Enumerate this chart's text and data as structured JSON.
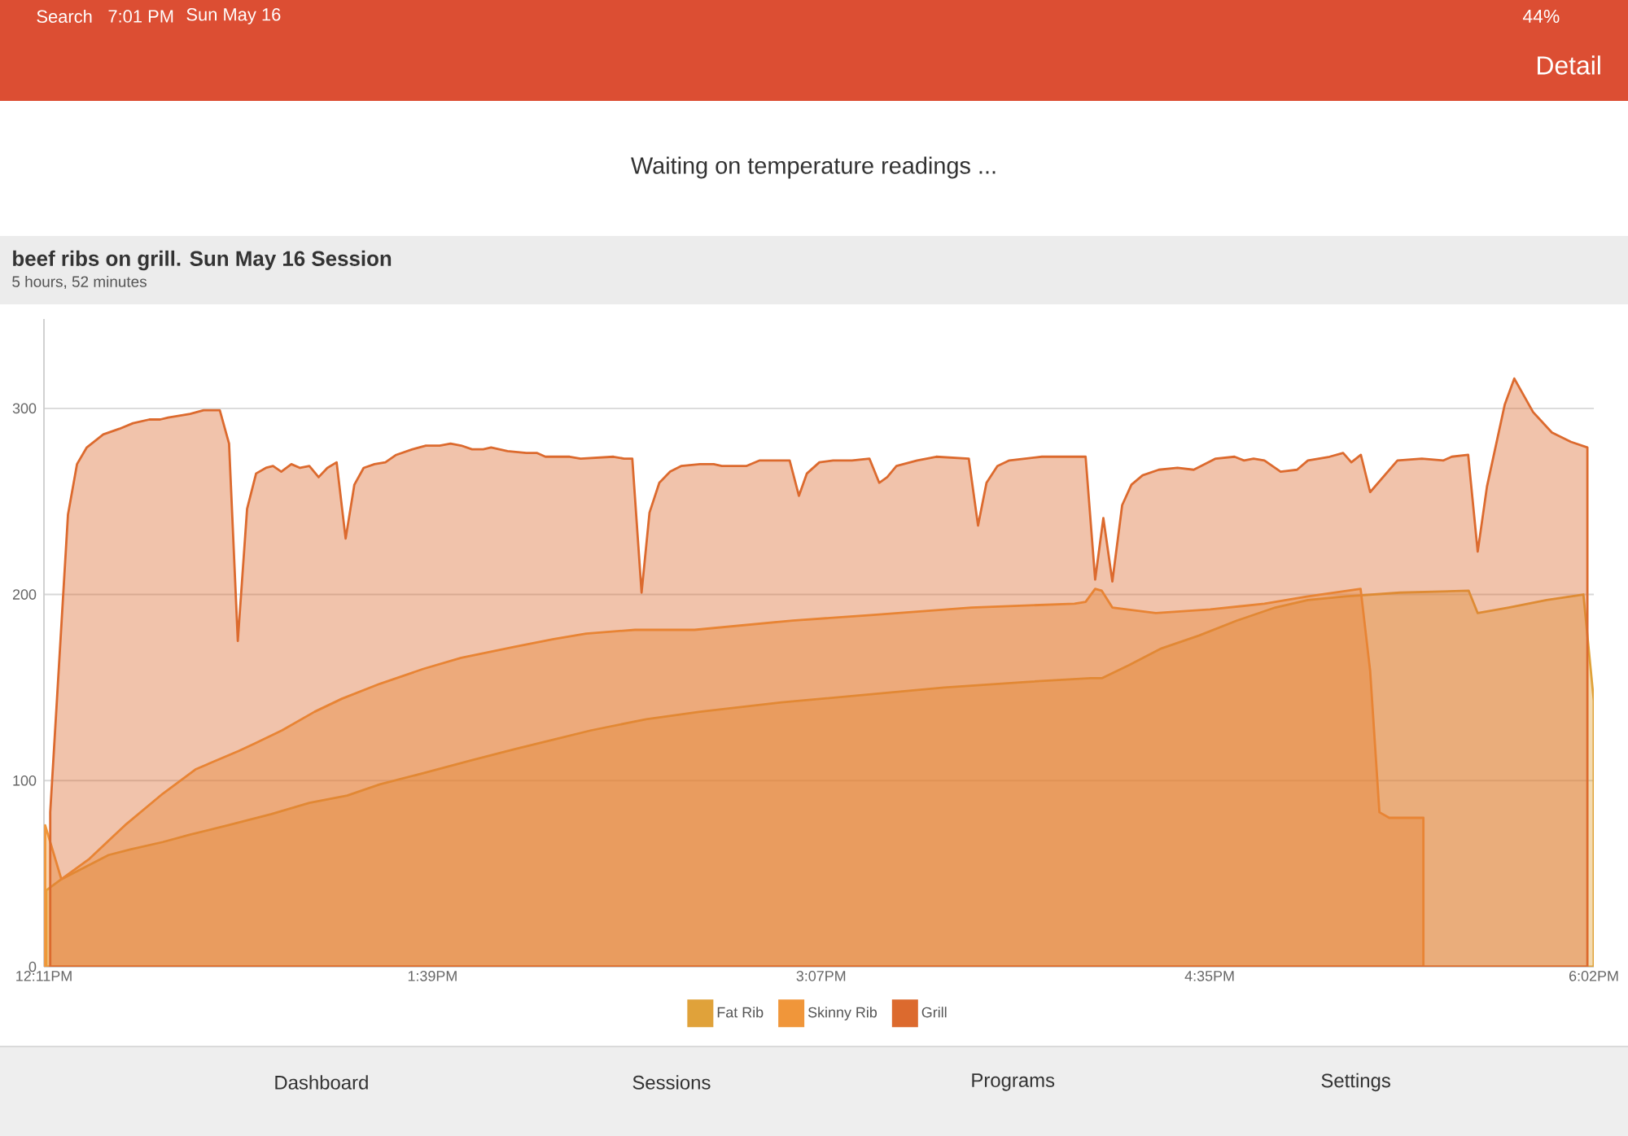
{
  "chart_data": {
    "type": "area",
    "title": "beef ribs on grill. Sun May 16 Session",
    "subtitle": "5 hours, 52 minutes",
    "annotations": [
      "Search",
      "7:01 PM",
      "Sun May 16",
      "44%",
      "Detail",
      "Waiting on temperature readings ...",
      "Dashboard",
      "Sessions",
      "Programs",
      "Settings"
    ],
    "xlim": [
      12.1833,
      18.0333
    ],
    "xticks": [
      {
        "value": 12.1833,
        "label": "12:11PM"
      },
      {
        "value": 13.65,
        "label": "1:39PM"
      },
      {
        "value": 15.1167,
        "label": "3:07PM"
      },
      {
        "value": 16.5833,
        "label": "4:35PM"
      },
      {
        "value": 18.0333,
        "label": "6:02PM"
      }
    ],
    "ylim": [
      0,
      348
    ],
    "yticks": [
      0,
      100,
      200,
      300
    ],
    "grid": "y",
    "legend": "bottom",
    "series": [
      {
        "name": "Fat Rib",
        "color": "#e0a23a",
        "x": [
          12.192,
          12.249,
          12.345,
          12.427,
          12.509,
          12.632,
          12.735,
          12.878,
          13.042,
          13.185,
          13.328,
          13.451,
          13.615,
          13.799,
          13.963,
          14.107,
          14.249,
          14.456,
          14.66,
          14.967,
          15.274,
          15.581,
          15.889,
          16.134,
          16.176,
          16.278,
          16.401,
          16.544,
          16.687,
          16.831,
          16.954,
          17.097,
          17.302,
          17.561,
          17.595,
          17.712,
          17.855,
          17.994,
          18.009,
          18.033
        ],
        "values": [
          41,
          47,
          54,
          60,
          63,
          67,
          71,
          76,
          82,
          88,
          92,
          98,
          104,
          111,
          117,
          122,
          127,
          133,
          137,
          142,
          146,
          150,
          153,
          155,
          155,
          162,
          171,
          178,
          186,
          193,
          197,
          199,
          201,
          202,
          190,
          193,
          197,
          200,
          178,
          143
        ]
      },
      {
        "name": "Skinny Rib",
        "color": "#f0963a",
        "x": [
          12.188,
          12.249,
          12.355,
          12.489,
          12.632,
          12.755,
          12.919,
          12.98,
          13.082,
          13.205,
          13.308,
          13.451,
          13.615,
          13.758,
          13.963,
          14.107,
          14.23,
          14.414,
          14.639,
          15.009,
          15.315,
          15.684,
          16.073,
          16.115,
          16.151,
          16.176,
          16.216,
          16.38,
          16.585,
          16.79,
          16.954,
          17.153,
          17.189,
          17.224,
          17.261,
          17.302,
          17.39
        ],
        "values": [
          76,
          47,
          58,
          76,
          93,
          106,
          116,
          120,
          127,
          137,
          144,
          152,
          160,
          166,
          172,
          176,
          179,
          181,
          181,
          186,
          189,
          193,
          195,
          196,
          203,
          202,
          193,
          190,
          192,
          195,
          199,
          203,
          159,
          83,
          80,
          80,
          80
        ]
      },
      {
        "name": "Grill",
        "color": "#dc6a2e",
        "x": [
          12.207,
          12.274,
          12.308,
          12.345,
          12.407,
          12.468,
          12.519,
          12.581,
          12.622,
          12.652,
          12.735,
          12.786,
          12.847,
          12.882,
          12.915,
          12.95,
          12.984,
          13.021,
          13.048,
          13.079,
          13.117,
          13.15,
          13.185,
          13.22,
          13.253,
          13.288,
          13.322,
          13.355,
          13.39,
          13.431,
          13.472,
          13.513,
          13.574,
          13.625,
          13.677,
          13.718,
          13.758,
          13.799,
          13.841,
          13.871,
          13.933,
          14.004,
          14.045,
          14.076,
          14.107,
          14.168,
          14.209,
          14.333,
          14.373,
          14.404,
          14.439,
          14.469,
          14.506,
          14.547,
          14.588,
          14.66,
          14.711,
          14.742,
          14.834,
          14.885,
          14.998,
          15.033,
          15.063,
          15.11,
          15.162,
          15.233,
          15.299,
          15.336,
          15.366,
          15.401,
          15.479,
          15.551,
          15.674,
          15.709,
          15.741,
          15.782,
          15.827,
          15.95,
          16.053,
          16.104,
          16.115,
          16.151,
          16.182,
          16.216,
          16.253,
          16.288,
          16.33,
          16.391,
          16.462,
          16.523,
          16.606,
          16.677,
          16.713,
          16.749,
          16.79,
          16.851,
          16.913,
          16.954,
          17.036,
          17.087,
          17.118,
          17.154,
          17.189,
          17.292,
          17.384,
          17.466,
          17.497,
          17.559,
          17.595,
          17.63,
          17.697,
          17.733,
          17.804,
          17.875,
          17.947,
          18.009
        ],
        "values": [
          83,
          243,
          270,
          279,
          286,
          289,
          292,
          294,
          294,
          295,
          297,
          299,
          299,
          281,
          175,
          246,
          265,
          268,
          269,
          266,
          270,
          268,
          269,
          263,
          268,
          271,
          230,
          259,
          268,
          270,
          271,
          275,
          278,
          280,
          280,
          281,
          280,
          278,
          278,
          279,
          277,
          276,
          276,
          274,
          274,
          274,
          273,
          274,
          273,
          273,
          201,
          244,
          260,
          266,
          269,
          270,
          270,
          269,
          269,
          272,
          272,
          253,
          265,
          271,
          272,
          272,
          273,
          260,
          263,
          269,
          272,
          274,
          273,
          237,
          260,
          269,
          272,
          274,
          274,
          274,
          274,
          208,
          241,
          207,
          248,
          259,
          264,
          267,
          268,
          267,
          273,
          274,
          272,
          273,
          272,
          266,
          267,
          272,
          274,
          276,
          271,
          275,
          255,
          272,
          273,
          272,
          274,
          275,
          223,
          258,
          302,
          316,
          298,
          287,
          282,
          279
        ]
      }
    ]
  }
}
